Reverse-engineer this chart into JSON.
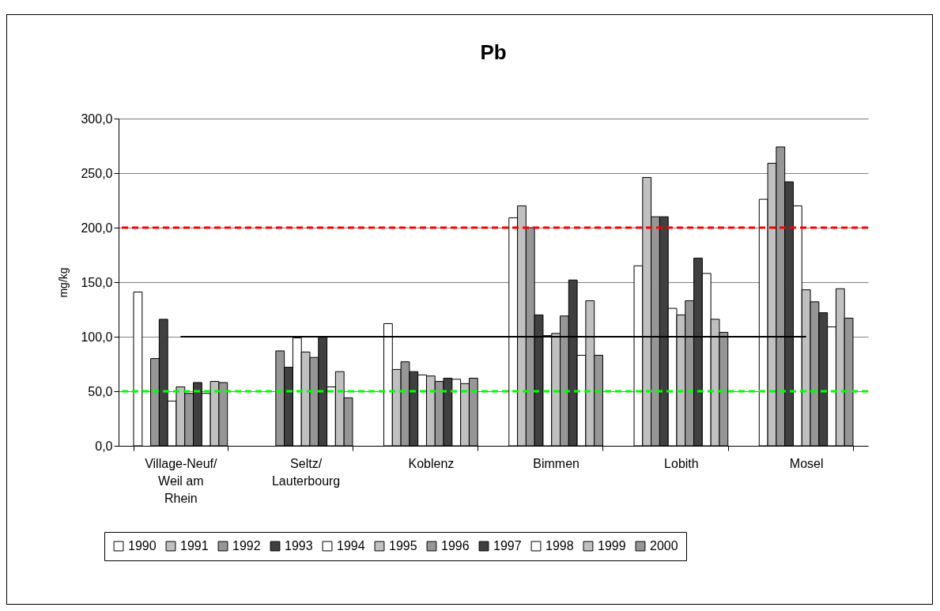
{
  "chart_data": {
    "type": "bar",
    "title": "Pb",
    "ylabel": "mg/kg",
    "categories": [
      "Village-Neuf/\nWeil am\nRhein",
      "Seltz/\nLauterbourg",
      "Koblenz",
      "Bimmen",
      "Lobith",
      "Mosel"
    ],
    "series": [
      {
        "name": "1990",
        "color": "#ffffff",
        "values": [
          141,
          null,
          112,
          209,
          165,
          226
        ]
      },
      {
        "name": "1991",
        "color": "#c0c0c0",
        "values": [
          null,
          null,
          70,
          220,
          246,
          259
        ]
      },
      {
        "name": "1992",
        "color": "#969696",
        "values": [
          80,
          87,
          77,
          200,
          210,
          274
        ]
      },
      {
        "name": "1993",
        "color": "#404040",
        "values": [
          116,
          72,
          68,
          120,
          210,
          242
        ]
      },
      {
        "name": "1994",
        "color": "#ffffff",
        "values": [
          41,
          99,
          65,
          101,
          126,
          220
        ]
      },
      {
        "name": "1995",
        "color": "#c0c0c0",
        "values": [
          54,
          86,
          64,
          103,
          120,
          143
        ]
      },
      {
        "name": "1996",
        "color": "#969696",
        "values": [
          48,
          81,
          59,
          119,
          133,
          132
        ]
      },
      {
        "name": "1997",
        "color": "#404040",
        "values": [
          58,
          100,
          62,
          152,
          172,
          122
        ]
      },
      {
        "name": "1998",
        "color": "#ffffff",
        "values": [
          48,
          54,
          61,
          83,
          158,
          109
        ]
      },
      {
        "name": "1999",
        "color": "#c0c0c0",
        "values": [
          59,
          68,
          57,
          133,
          116,
          144
        ]
      },
      {
        "name": "2000",
        "color": "#969696",
        "values": [
          58,
          44,
          62,
          83,
          104,
          117
        ]
      },
      {
        "type": "line",
        "color": "#000000",
        "values": [
          100,
          100,
          100,
          100,
          100,
          100
        ]
      }
    ],
    "ylim": [
      0,
      300
    ],
    "yticks": [
      {
        "value": 0,
        "label": "0,0"
      },
      {
        "value": 50,
        "label": "50,0"
      },
      {
        "value": 100,
        "label": "100,0"
      },
      {
        "value": 150,
        "label": "150,0"
      },
      {
        "value": 200,
        "label": "200,0"
      },
      {
        "value": 250,
        "label": "250,0"
      },
      {
        "value": 300,
        "label": "300,0"
      }
    ],
    "ref_lines": [
      {
        "axis": "y",
        "value": 200,
        "color": "#ff0000",
        "line_style": "dashed"
      },
      {
        "axis": "y",
        "value": 50,
        "color": "#00ff00",
        "line_style": "dashed"
      }
    ],
    "grid": "y",
    "legend": "bottom"
  }
}
